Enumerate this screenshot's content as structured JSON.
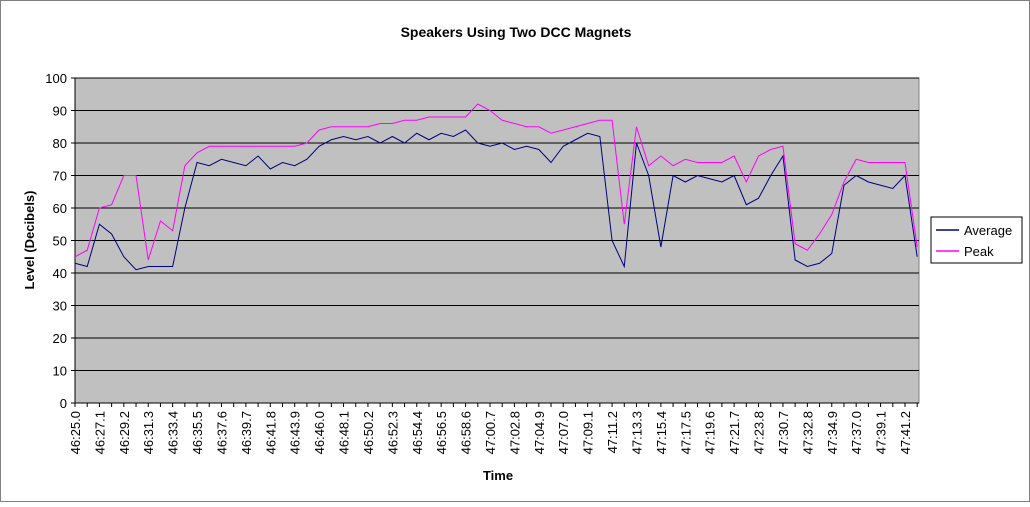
{
  "chart_data": {
    "type": "line",
    "title": "Speakers Using Two DCC Magnets",
    "x_label": "Time",
    "y_label": "Level (Decibels)",
    "categories": [
      "46:25.0",
      null,
      "46:27.1",
      null,
      "46:29.2",
      null,
      "46:31.3",
      null,
      "46:33.4",
      null,
      "46:35.5",
      null,
      "46:37.6",
      null,
      "46:39.7",
      null,
      "46:41.8",
      null,
      "46:43.9",
      null,
      "46:46.0",
      null,
      "46:48.1",
      null,
      "46:50.2",
      null,
      "46:52.3",
      null,
      "46:54.4",
      null,
      "46:56.5",
      null,
      "46:58.6",
      null,
      "47:00.7",
      null,
      "47:02.8",
      null,
      "47:04.9",
      null,
      "47:07.0",
      null,
      "47:09.1",
      null,
      "47:11.2",
      null,
      "47:13.3",
      null,
      "47:15.4",
      null,
      "47:17.5",
      null,
      "47:19.6",
      null,
      "47:21.7",
      null,
      "47:23.8",
      null,
      "47:30.7",
      null,
      "47:32.8",
      null,
      "47:34.9",
      null,
      "47:37.0",
      null,
      "47:39.1",
      null,
      "47:41.2",
      null
    ],
    "series": [
      {
        "name": "Average",
        "color": "#000080",
        "values": [
          43,
          42,
          55,
          52,
          45,
          41,
          42,
          42,
          42,
          60,
          74,
          73,
          75,
          74,
          73,
          76,
          72,
          74,
          73,
          75,
          79,
          81,
          82,
          81,
          82,
          80,
          82,
          80,
          83,
          81,
          83,
          82,
          84,
          80,
          79,
          80,
          78,
          79,
          78,
          74,
          79,
          81,
          83,
          82,
          50,
          42,
          80,
          70,
          48,
          70,
          68,
          70,
          69,
          68,
          70,
          61,
          63,
          70,
          76,
          44,
          42,
          43,
          46,
          67,
          70,
          68,
          67,
          66,
          70,
          45
        ]
      },
      {
        "name": "Peak",
        "color": "#ff00ff",
        "values": [
          45,
          47,
          60,
          61,
          70,
          70,
          44,
          56,
          53,
          73,
          77,
          79,
          79,
          79,
          79,
          79,
          79,
          79,
          79,
          80,
          84,
          85,
          85,
          85,
          85,
          86,
          86,
          87,
          87,
          88,
          88,
          88,
          88,
          92,
          90,
          87,
          86,
          85,
          85,
          83,
          84,
          85,
          86,
          87,
          87,
          55,
          85,
          73,
          76,
          73,
          75,
          74,
          74,
          74,
          76,
          68,
          76,
          78,
          79,
          49,
          47,
          52,
          58,
          68,
          75,
          74,
          74,
          74,
          74,
          48
        ]
      }
    ],
    "ylim": [
      0,
      100
    ],
    "yticks": [
      0,
      10,
      20,
      30,
      40,
      50,
      60,
      70,
      80,
      90,
      100
    ],
    "grid": true,
    "plot_background": "#c0c0c0",
    "legend": "right"
  }
}
